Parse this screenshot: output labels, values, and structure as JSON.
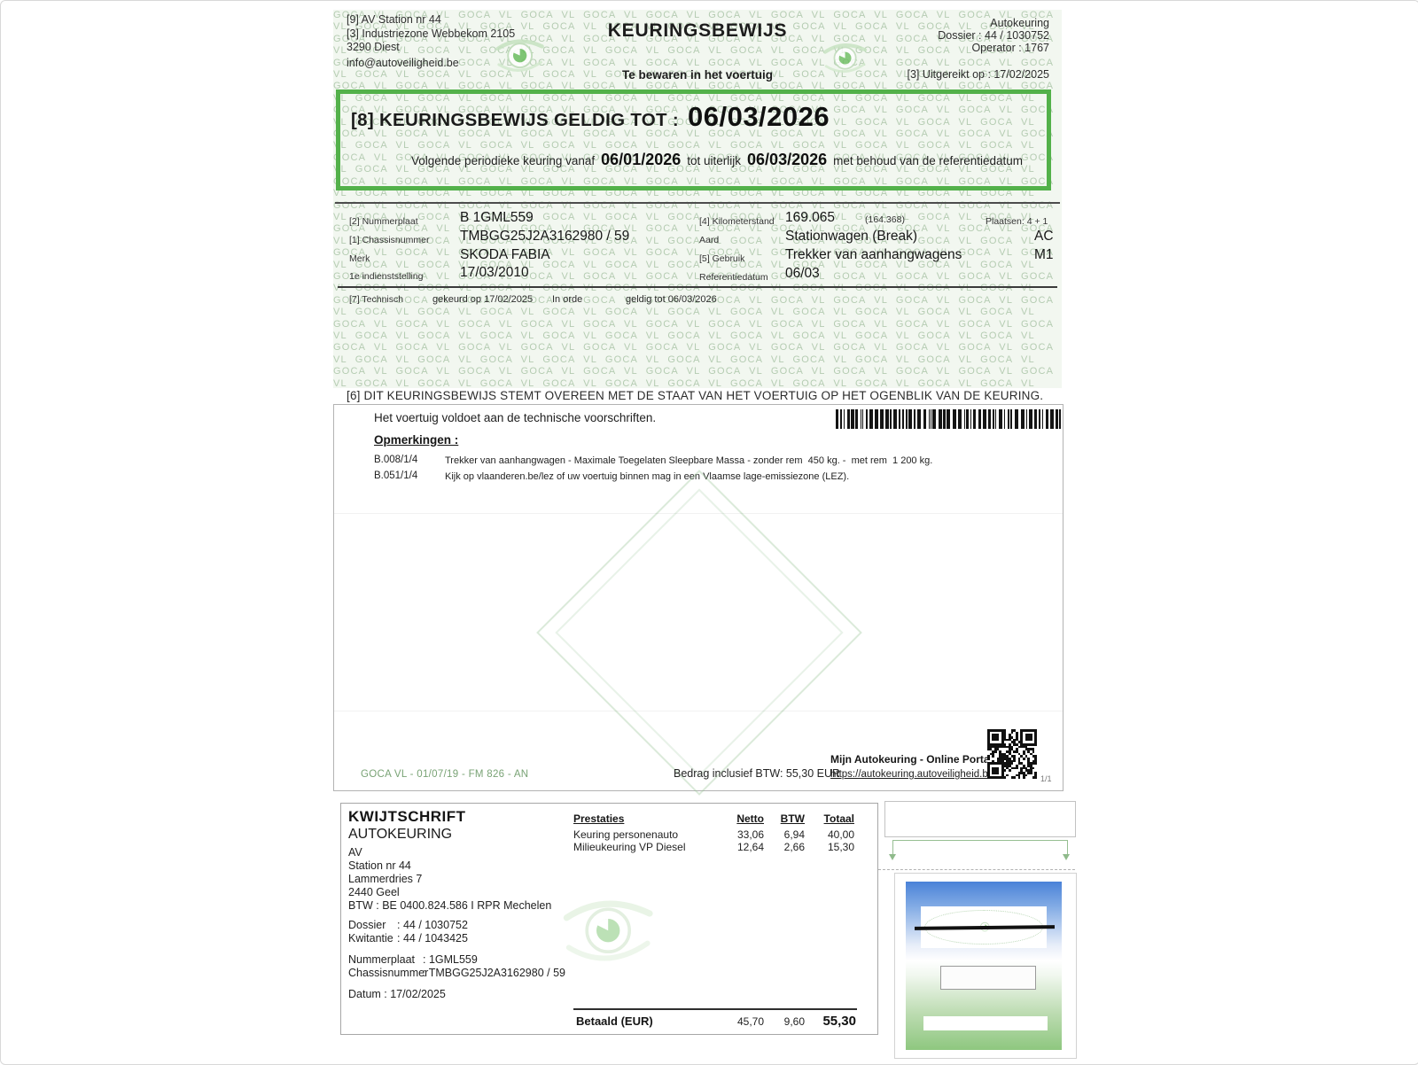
{
  "watermark": {
    "text": "GOCA VL"
  },
  "header": {
    "station": [
      "[9] AV Station nr 44",
      "[3] Industriezone Webbekom 2105",
      "3290 Diest",
      "info@autoveiligheid.be"
    ],
    "title": "KEURINGSBEWIJS",
    "subtitle": "Te bewaren in het voertuig",
    "right": {
      "type": "Autokeuring",
      "dossier": "Dossier : 44 / 1030752",
      "operator": "Operator : 1767",
      "issued": "[3] Uitgereikt op : 17/02/2025"
    }
  },
  "validity": {
    "label": "[8] KEURINGSBEWIJS GELDIG TOT :",
    "valid_until": "06/03/2026",
    "next_prefix": "Volgende periodieke keuring vanaf",
    "next_from": "06/01/2026",
    "next_mid": "tot uiterlijk",
    "next_until": "06/03/2026",
    "next_suffix": "met behoud van de referentiedatum"
  },
  "vehicle": {
    "plate_label": "[2] Nummerplaat",
    "plate": "B 1GML559",
    "chassis_label": "[1] Chassisnummer",
    "chassis": "TMBGG25J2A3162980 / 59",
    "brand_label": "Merk",
    "brand": "SKODA FABIA",
    "first_use_label": "1e indienststelling",
    "first_use": "17/03/2010",
    "odometer_label": "[4] Kilometerstand",
    "odometer": "169.065",
    "odometer_alt": "(164.368)",
    "seats": "Plaatsen: 4 + 1",
    "kind_label": "Aard",
    "kind": "Stationwagen (Break)",
    "kind_code": "AC",
    "use_label": "[5] Gebruik",
    "use": "Trekker van aanhangwagens",
    "use_code": "M1",
    "refdate_label": "Referentiedatum",
    "refdate": "06/03"
  },
  "technical": {
    "label": "[7] Technisch",
    "checked": "gekeurd op 17/02/2025",
    "status": "In orde",
    "valid": "geldig tot 06/03/2026"
  },
  "statement": "[6] DIT KEURINGSBEWIJS STEMT OVEREEN MET DE STAAT VAN HET VOERTUIG OP HET OGENBLIK VAN DE KEURING.",
  "remarks": {
    "compliance": "Het voertuig voldoet aan de technische voorschriften.",
    "heading": "Opmerkingen :",
    "items": [
      {
        "code": "B.008/1/4",
        "text": "Trekker van aanhangwagen - Maximale Toegelaten Sleepbare Massa - zonder rem  450 kg. -  met rem  1 200 kg."
      },
      {
        "code": "B.051/1/4",
        "text": "Kijk op vlaanderen.be/lez of uw voertuig binnen mag in een Vlaamse lage-emissiezone (LEZ)."
      }
    ],
    "form_code": "GOCA VL - 01/07/19 - FM 826 - AN",
    "amount": "Bedrag inclusief BTW: 55,30 EUR",
    "portal_title": "Mijn Autokeuring - Online Portaal",
    "portal_url": "https://autokeuring.autoveiligheid.be/",
    "page": "1/1"
  },
  "receipt": {
    "title": "KWIJTSCHRIFT",
    "subtitle": "AUTOKEURING",
    "address": [
      "AV",
      "Station nr 44",
      "Lammerdries 7",
      "2440 Geel",
      "BTW : BE 0400.824.586 I RPR Mechelen"
    ],
    "dossier_label": "Dossier",
    "dossier": ": 44 / 1030752",
    "receipt_label": "Kwitantie",
    "receipt_no": ": 44 / 1043425",
    "plate_label": "Nummerplaat",
    "plate": ": 1GML559",
    "chassis_label": "Chassisnummer",
    "chassis": ": TMBGG25J2A3162980 / 59",
    "date_line": "Datum : 17/02/2025",
    "table": {
      "headers": [
        "Prestaties",
        "Netto",
        "BTW",
        "Totaal"
      ],
      "rows": [
        {
          "service": "Keuring personenauto",
          "netto": "33,06",
          "btw": "6,94",
          "total": "40,00"
        },
        {
          "service": "Milieukeuring VP Diesel",
          "netto": "12,64",
          "btw": "2,66",
          "total": "15,30"
        }
      ],
      "paid_label": "Betaald (EUR)",
      "paid_netto": "45,70",
      "paid_btw": "9,60",
      "paid_total": "55,30"
    }
  },
  "colors": {
    "green_border": "#53b14a",
    "watermark_green": "#b5ccb2",
    "form_code_green": "#79a375",
    "sticker_blue": "#4a82d8",
    "sticker_green": "#8ec77f"
  }
}
